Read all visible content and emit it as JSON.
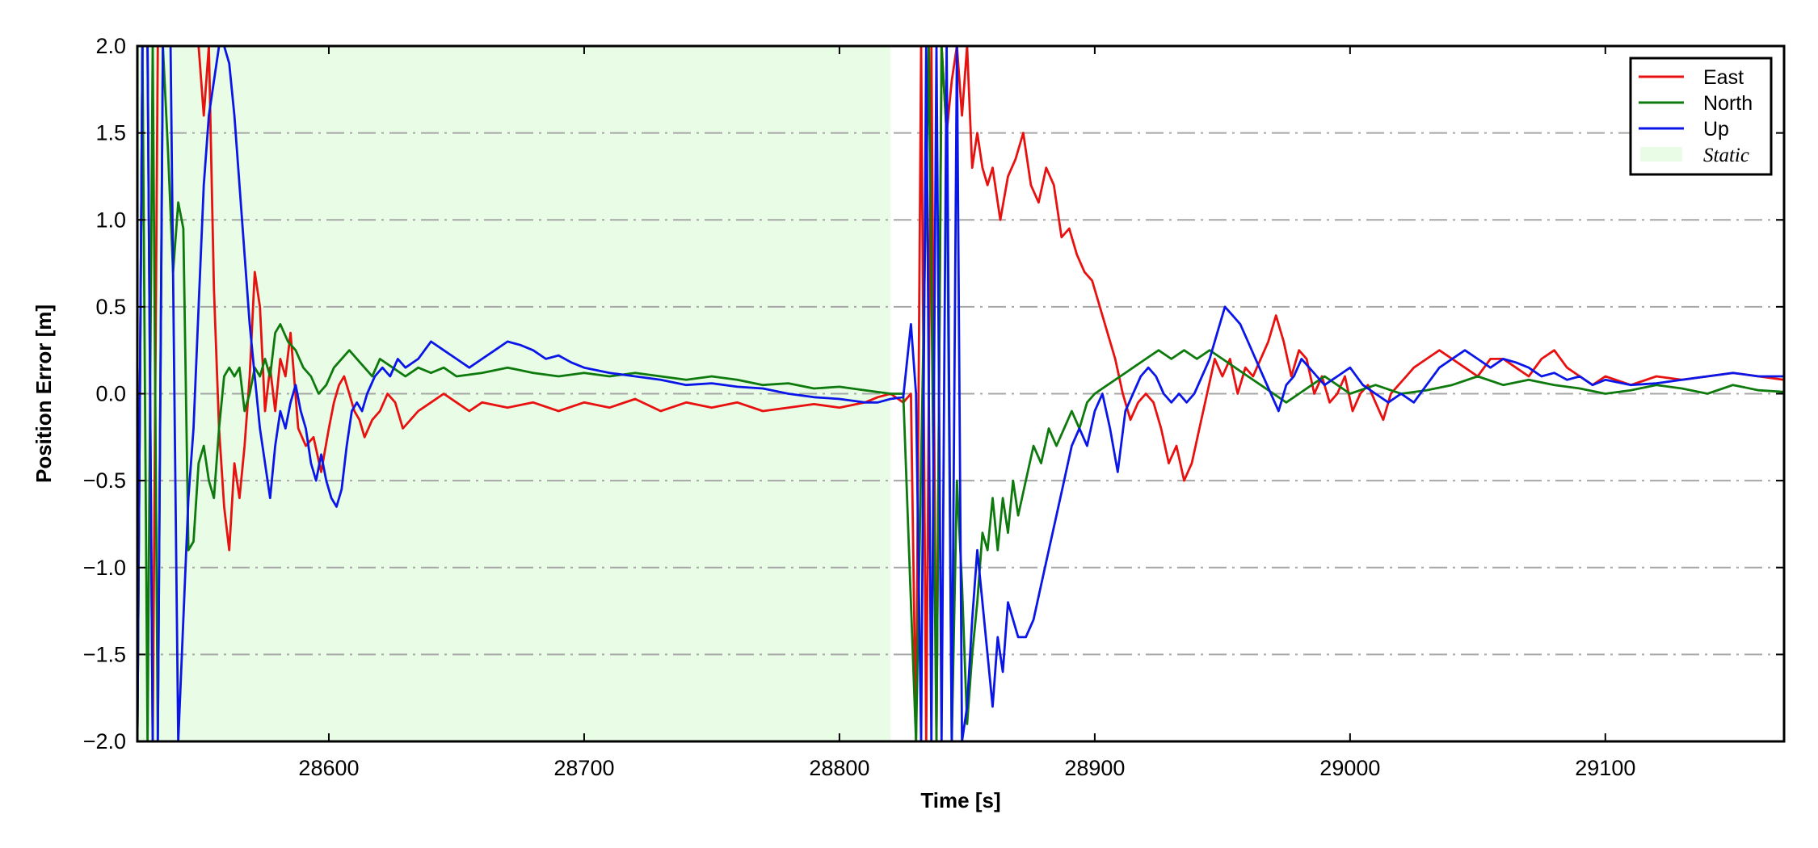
{
  "chart_data": {
    "type": "line",
    "title": "",
    "xlabel": "Time [s]",
    "ylabel": "Position Error [m]",
    "xlim": [
      28525,
      29170
    ],
    "ylim": [
      -2.0,
      2.0
    ],
    "x_ticks": [
      28600,
      28700,
      28800,
      28900,
      29000,
      29100
    ],
    "y_ticks": [
      2.0,
      1.5,
      1.0,
      0.5,
      0.0,
      -0.5,
      -1.0,
      -1.5,
      -2.0
    ],
    "y_tick_labels": [
      "2.0",
      "1.5",
      "1.0",
      "0.5",
      "0.0",
      "−0.5",
      "−1.0",
      "−1.5",
      "−2.0"
    ],
    "grid": "horizontal dash-dot",
    "legend_position": "top-right",
    "shaded_regions": [
      {
        "name": "Static",
        "x": [
          28525,
          28820
        ],
        "color": "#e8fce6"
      }
    ],
    "series": [
      {
        "name": "East",
        "color": "#e8110f",
        "x": [
          28525,
          28527,
          28529,
          28531,
          28533,
          28535,
          28540,
          28545,
          28549,
          28551,
          28553,
          28555,
          28557,
          28559,
          28561,
          28563,
          28565,
          28567,
          28569,
          28571,
          28573,
          28575,
          28577,
          28579,
          28581,
          28583,
          28585,
          28588,
          28591,
          28594,
          28597,
          28600,
          28602,
          28604,
          28606,
          28608,
          28610,
          28612,
          28614,
          28617,
          28620,
          28623,
          28626,
          28629,
          28632,
          28635,
          28640,
          28645,
          28650,
          28655,
          28660,
          28670,
          28680,
          28690,
          28700,
          28710,
          28720,
          28730,
          28740,
          28750,
          28760,
          28770,
          28780,
          28790,
          28800,
          28810,
          28815,
          28820,
          28825,
          28828,
          28830,
          28832,
          28834,
          28836,
          28838,
          28840,
          28842,
          28844,
          28846,
          28848,
          28850,
          28852,
          28854,
          28856,
          28858,
          28860,
          28863,
          28866,
          28869,
          28872,
          28875,
          28878,
          28881,
          28884,
          28887,
          28890,
          28893,
          28896,
          28899,
          28902,
          28905,
          28908,
          28911,
          28914,
          28917,
          28920,
          28923,
          28926,
          28929,
          28932,
          28935,
          28938,
          28941,
          28944,
          28947,
          28950,
          28953,
          28956,
          28959,
          28962,
          28965,
          28968,
          28971,
          28974,
          28977,
          28980,
          28983,
          28986,
          28989,
          28992,
          28995,
          28998,
          29001,
          29004,
          29007,
          29010,
          29013,
          29016,
          29019,
          29022,
          29025,
          29030,
          29035,
          29040,
          29045,
          29050,
          29055,
          29060,
          29065,
          29070,
          29075,
          29080,
          29085,
          29090,
          29095,
          29100,
          29110,
          29120,
          29130,
          29140,
          29150,
          29160,
          29170
        ],
        "y": [
          -2.0,
          2.0,
          2.0,
          -2.0,
          2.0,
          2.0,
          2.0,
          2.0,
          2.0,
          1.6,
          2.0,
          0.6,
          -0.2,
          -0.65,
          -0.9,
          -0.4,
          -0.6,
          -0.3,
          0.1,
          0.7,
          0.5,
          -0.1,
          0.15,
          -0.1,
          0.2,
          0.1,
          0.35,
          -0.2,
          -0.3,
          -0.25,
          -0.45,
          -0.2,
          -0.05,
          0.05,
          0.1,
          0.0,
          -0.1,
          -0.15,
          -0.25,
          -0.15,
          -0.1,
          0.0,
          -0.05,
          -0.2,
          -0.15,
          -0.1,
          -0.05,
          0.0,
          -0.05,
          -0.1,
          -0.05,
          -0.08,
          -0.05,
          -0.1,
          -0.05,
          -0.08,
          -0.03,
          -0.1,
          -0.05,
          -0.08,
          -0.05,
          -0.1,
          -0.08,
          -0.06,
          -0.08,
          -0.05,
          -0.02,
          0.0,
          -0.05,
          0.0,
          -2.0,
          2.0,
          -2.0,
          2.0,
          -2.0,
          2.0,
          1.5,
          1.8,
          2.0,
          1.6,
          2.0,
          1.3,
          1.5,
          1.3,
          1.2,
          1.3,
          1.0,
          1.25,
          1.35,
          1.5,
          1.2,
          1.1,
          1.3,
          1.2,
          0.9,
          0.95,
          0.8,
          0.7,
          0.65,
          0.5,
          0.35,
          0.2,
          0.0,
          -0.15,
          -0.05,
          0.0,
          -0.05,
          -0.2,
          -0.4,
          -0.3,
          -0.5,
          -0.4,
          -0.2,
          0.0,
          0.2,
          0.1,
          0.2,
          0.0,
          0.15,
          0.1,
          0.2,
          0.3,
          0.45,
          0.3,
          0.1,
          0.25,
          0.2,
          0.0,
          0.1,
          -0.05,
          0.0,
          0.1,
          -0.1,
          0.0,
          0.05,
          -0.05,
          -0.15,
          0.0,
          0.05,
          0.1,
          0.15,
          0.2,
          0.25,
          0.2,
          0.15,
          0.1,
          0.2,
          0.2,
          0.15,
          0.1,
          0.2,
          0.25,
          0.15,
          0.1,
          0.05,
          0.1,
          0.05,
          0.1,
          0.08,
          0.1,
          0.12,
          0.1,
          0.08
        ]
      },
      {
        "name": "North",
        "color": "#0e7a0d",
        "x": [
          28525,
          28527,
          28529,
          28531,
          28533,
          28535,
          28537,
          28539,
          28541,
          28543,
          28545,
          28547,
          28549,
          28551,
          28553,
          28555,
          28557,
          28559,
          28561,
          28563,
          28565,
          28567,
          28569,
          28571,
          28573,
          28575,
          28577,
          28579,
          28581,
          28584,
          28587,
          28590,
          28593,
          28596,
          28599,
          28602,
          28605,
          28608,
          28611,
          28614,
          28617,
          28620,
          28625,
          28630,
          28635,
          28640,
          28645,
          28650,
          28660,
          28670,
          28680,
          28690,
          28700,
          28710,
          28720,
          28730,
          28740,
          28750,
          28760,
          28770,
          28780,
          28790,
          28800,
          28810,
          28820,
          28825,
          28830,
          28835,
          28838,
          28840,
          28842,
          28844,
          28846,
          28848,
          28850,
          28852,
          28854,
          28856,
          28858,
          28860,
          28862,
          28864,
          28866,
          28868,
          28870,
          28873,
          28876,
          28879,
          28882,
          28885,
          28888,
          28891,
          28894,
          28897,
          28900,
          28905,
          28910,
          28915,
          28920,
          28925,
          28930,
          28935,
          28940,
          28945,
          28950,
          28955,
          28960,
          28965,
          28970,
          28975,
          28980,
          28985,
          28990,
          28995,
          29000,
          29010,
          29020,
          29030,
          29040,
          29050,
          29060,
          29070,
          29080,
          29090,
          29100,
          29110,
          29120,
          29130,
          29140,
          29150,
          29160,
          29170
        ],
        "y": [
          -2.0,
          2.0,
          -2.0,
          2.0,
          -2.0,
          2.0,
          1.4,
          0.7,
          1.1,
          0.95,
          -0.9,
          -0.85,
          -0.4,
          -0.3,
          -0.5,
          -0.6,
          -0.2,
          0.1,
          0.15,
          0.1,
          0.15,
          -0.1,
          0.0,
          0.15,
          0.1,
          0.2,
          0.1,
          0.35,
          0.4,
          0.3,
          0.25,
          0.15,
          0.1,
          0.0,
          0.05,
          0.15,
          0.2,
          0.25,
          0.2,
          0.15,
          0.1,
          0.2,
          0.15,
          0.1,
          0.15,
          0.12,
          0.15,
          0.1,
          0.12,
          0.15,
          0.12,
          0.1,
          0.12,
          0.1,
          0.12,
          0.1,
          0.08,
          0.1,
          0.08,
          0.05,
          0.06,
          0.03,
          0.04,
          0.02,
          0.0,
          0.0,
          -2.0,
          2.0,
          -2.0,
          2.0,
          1.5,
          -2.0,
          -0.5,
          -1.1,
          -1.9,
          -1.5,
          -1.2,
          -0.8,
          -0.9,
          -0.6,
          -0.9,
          -0.6,
          -0.8,
          -0.5,
          -0.7,
          -0.5,
          -0.3,
          -0.4,
          -0.2,
          -0.3,
          -0.2,
          -0.1,
          -0.2,
          -0.05,
          0.0,
          0.05,
          0.1,
          0.15,
          0.2,
          0.25,
          0.2,
          0.25,
          0.2,
          0.25,
          0.2,
          0.15,
          0.1,
          0.05,
          0.0,
          -0.05,
          0.0,
          0.05,
          0.1,
          0.05,
          0.0,
          0.05,
          0.0,
          0.02,
          0.05,
          0.1,
          0.05,
          0.08,
          0.05,
          0.03,
          0.0,
          0.02,
          0.05,
          0.03,
          0.0,
          0.05,
          0.02,
          0.01
        ]
      },
      {
        "name": "Up",
        "color": "#0a16e8",
        "x": [
          28525,
          28527,
          28529,
          28531,
          28533,
          28535,
          28538,
          28541,
          28543,
          28545,
          28547,
          28549,
          28551,
          28553,
          28555,
          28557,
          28559,
          28561,
          28563,
          28565,
          28567,
          28569,
          28571,
          28573,
          28575,
          28577,
          28579,
          28581,
          28583,
          28585,
          28587,
          28589,
          28591,
          28593,
          28595,
          28597,
          28599,
          28601,
          28603,
          28605,
          28607,
          28609,
          28611,
          28613,
          28615,
          28618,
          28621,
          28624,
          28627,
          28630,
          28635,
          28640,
          28645,
          28650,
          28655,
          28660,
          28665,
          28670,
          28675,
          28680,
          28685,
          28690,
          28695,
          28700,
          28710,
          28720,
          28730,
          28740,
          28750,
          28760,
          28770,
          28780,
          28790,
          28800,
          28810,
          28815,
          28820,
          28825,
          28828,
          28830,
          28832,
          28834,
          28836,
          28838,
          28840,
          28842,
          28844,
          28846,
          28848,
          28850,
          28852,
          28854,
          28856,
          28858,
          28860,
          28862,
          28864,
          28866,
          28868,
          28870,
          28873,
          28876,
          28879,
          28882,
          28885,
          28888,
          28891,
          28894,
          28897,
          28900,
          28903,
          28906,
          28909,
          28912,
          28915,
          28918,
          28921,
          28924,
          28927,
          28930,
          28933,
          28936,
          28939,
          28942,
          28945,
          28948,
          28951,
          28954,
          28957,
          28960,
          28963,
          28966,
          28969,
          28972,
          28975,
          28978,
          28981,
          28984,
          28987,
          28990,
          28995,
          29000,
          29005,
          29010,
          29015,
          29020,
          29025,
          29030,
          29035,
          29040,
          29045,
          29050,
          29055,
          29060,
          29065,
          29070,
          29075,
          29080,
          29085,
          29090,
          29095,
          29100,
          29110,
          29120,
          29130,
          29140,
          29150,
          29160,
          29170
        ],
        "y": [
          -2.0,
          2.0,
          2.0,
          -2.0,
          -2.0,
          2.0,
          2.0,
          -2.0,
          -1.3,
          -0.6,
          -0.2,
          0.5,
          1.2,
          1.6,
          1.8,
          2.0,
          2.0,
          1.9,
          1.6,
          1.2,
          0.8,
          0.4,
          0.1,
          -0.2,
          -0.4,
          -0.6,
          -0.3,
          -0.1,
          -0.2,
          -0.05,
          0.05,
          -0.1,
          -0.2,
          -0.4,
          -0.5,
          -0.35,
          -0.5,
          -0.6,
          -0.65,
          -0.55,
          -0.3,
          -0.1,
          -0.05,
          -0.1,
          0.0,
          0.1,
          0.15,
          0.1,
          0.2,
          0.15,
          0.2,
          0.3,
          0.25,
          0.2,
          0.15,
          0.2,
          0.25,
          0.3,
          0.28,
          0.25,
          0.2,
          0.22,
          0.18,
          0.15,
          0.12,
          0.1,
          0.08,
          0.05,
          0.06,
          0.04,
          0.03,
          0.0,
          -0.02,
          -0.03,
          -0.05,
          -0.05,
          -0.03,
          -0.02,
          0.4,
          0.0,
          -2.0,
          2.0,
          -2.0,
          2.0,
          -2.0,
          2.0,
          -2.0,
          2.0,
          -2.0,
          -1.8,
          -1.3,
          -0.9,
          -1.2,
          -1.5,
          -1.8,
          -1.4,
          -1.6,
          -1.2,
          -1.3,
          -1.4,
          -1.4,
          -1.3,
          -1.1,
          -0.9,
          -0.7,
          -0.5,
          -0.3,
          -0.2,
          -0.3,
          -0.1,
          0.0,
          -0.2,
          -0.45,
          -0.1,
          0.0,
          0.1,
          0.15,
          0.1,
          0.0,
          -0.05,
          0.0,
          -0.05,
          0.0,
          0.1,
          0.2,
          0.35,
          0.5,
          0.45,
          0.4,
          0.3,
          0.2,
          0.1,
          0.0,
          -0.1,
          0.05,
          0.1,
          0.2,
          0.15,
          0.1,
          0.05,
          0.1,
          0.15,
          0.05,
          0.0,
          -0.05,
          0.0,
          -0.05,
          0.05,
          0.15,
          0.2,
          0.25,
          0.2,
          0.15,
          0.2,
          0.18,
          0.15,
          0.1,
          0.12,
          0.08,
          0.1,
          0.05,
          0.08,
          0.05,
          0.06,
          0.08,
          0.1,
          0.12,
          0.1,
          0.1
        ]
      }
    ]
  }
}
